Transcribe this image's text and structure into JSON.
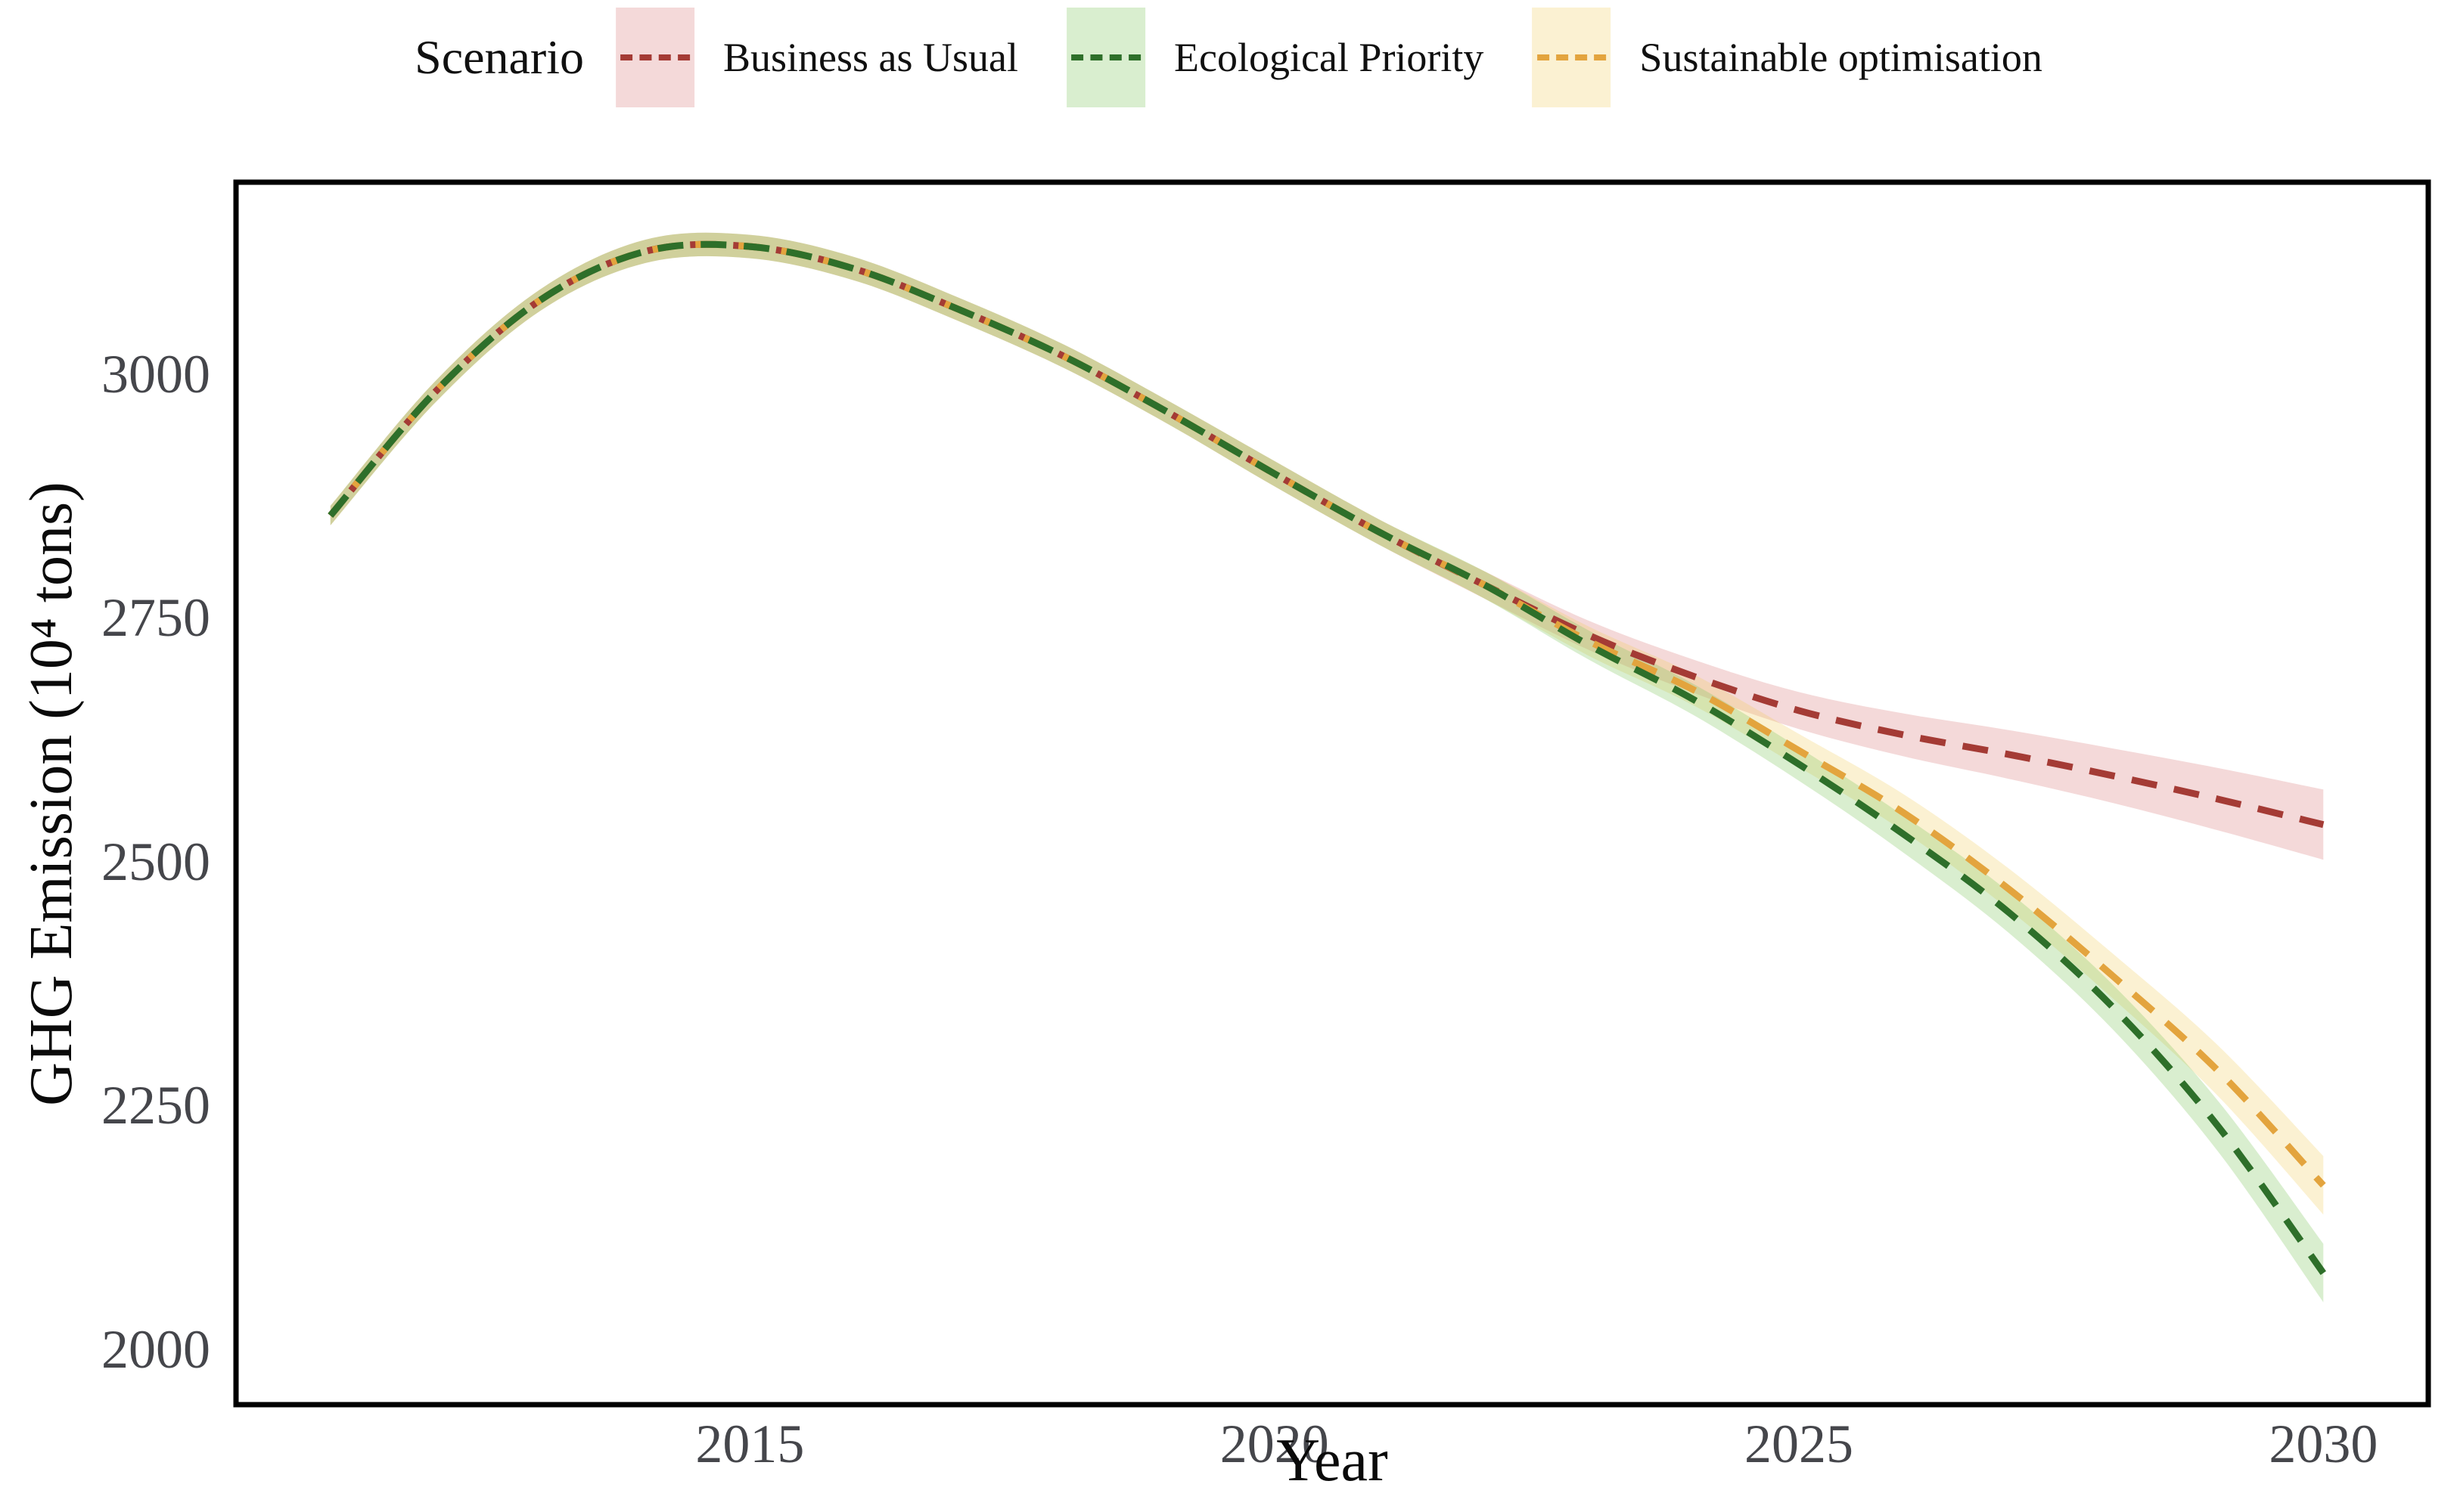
{
  "figure": {
    "background": "#FFFFFF"
  },
  "axis_style": {
    "tick_color": "#45464B",
    "title_color": "#0A0A0A",
    "panel_border_color": "#000000"
  },
  "chart_data": {
    "type": "line",
    "title": "",
    "legend_title": "Scenario",
    "legend_position": "top",
    "xlabel": "Year",
    "ylabel": "GHG Emission (10⁴ tons)",
    "grid": false,
    "line_style": "dashed",
    "x": [
      2011,
      2012,
      2013,
      2014,
      2015,
      2016,
      2017,
      2018,
      2019,
      2020,
      2021,
      2022,
      2023,
      2024,
      2025,
      2026,
      2027,
      2028,
      2029,
      2030
    ],
    "x_ticks": [
      2015,
      2020,
      2025,
      2030
    ],
    "y_ticks": [
      2000,
      2250,
      2500,
      2750,
      3000
    ],
    "xlim": [
      2010.1,
      2031.0
    ],
    "ylim": [
      1943,
      3197
    ],
    "draw_order": [
      0,
      2,
      1
    ],
    "series": [
      {
        "name": "Business as Usual",
        "line_color": "#A43B35",
        "band_color": "rgba(205,80,80,0.22)",
        "values": [
          2855,
          2982,
          3076,
          3126,
          3131,
          3108,
          3066,
          3018,
          2960,
          2898,
          2838,
          2784,
          2732,
          2690,
          2655,
          2630,
          2610,
          2588,
          2564,
          2538
        ],
        "band": [
          10,
          11,
          11,
          12,
          12,
          12,
          12,
          12,
          12,
          13,
          13,
          14,
          15,
          17,
          19,
          22,
          25,
          28,
          32,
          36
        ]
      },
      {
        "name": "Ecological Priority",
        "line_color": "#2E6F2A",
        "band_color": "rgba(130,200,95,0.30)",
        "values": [
          2855,
          2982,
          3076,
          3126,
          3131,
          3108,
          3066,
          3018,
          2960,
          2898,
          2838,
          2784,
          2722,
          2666,
          2600,
          2528,
          2448,
          2350,
          2228,
          2078
        ],
        "band": [
          10,
          11,
          11,
          12,
          12,
          12,
          12,
          12,
          12,
          13,
          13,
          14,
          15,
          16,
          17,
          19,
          21,
          23,
          26,
          30
        ]
      },
      {
        "name": "Sustainable optimisation",
        "line_color": "#E3A43E",
        "band_color": "rgba(242,205,95,0.28)",
        "values": [
          2855,
          2982,
          3076,
          3126,
          3131,
          3108,
          3066,
          3018,
          2960,
          2898,
          2838,
          2784,
          2726,
          2676,
          2614,
          2550,
          2472,
          2382,
          2285,
          2168
        ],
        "band": [
          10,
          11,
          11,
          12,
          12,
          12,
          12,
          12,
          12,
          13,
          13,
          14,
          15,
          16,
          17,
          19,
          21,
          23,
          26,
          30
        ]
      }
    ]
  }
}
